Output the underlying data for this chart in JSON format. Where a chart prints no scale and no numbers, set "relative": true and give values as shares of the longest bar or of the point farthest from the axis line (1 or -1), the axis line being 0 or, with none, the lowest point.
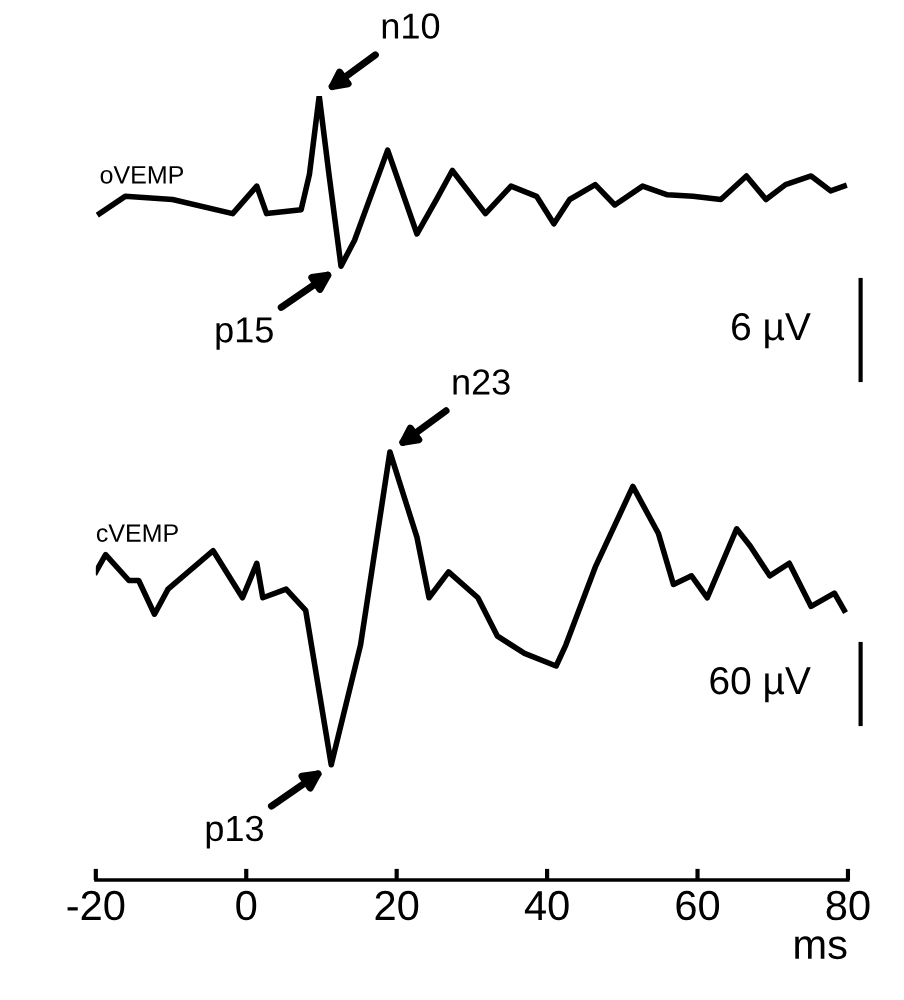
{
  "chart_data": {
    "type": "line",
    "relative": true,
    "xlim": [
      -20,
      80
    ],
    "xticks": [
      -20,
      0,
      20,
      40,
      60,
      80
    ],
    "xlabel": "ms",
    "tick_labels": "x",
    "grid": false,
    "legend": false,
    "series": [
      {
        "name": "oVEMP",
        "color": "#000000",
        "x": [
          -19.5,
          -16.1,
          -9.8,
          -1.8,
          1.4,
          2.7,
          7.3,
          8.4,
          9.7,
          11.0,
          12.6,
          14.4,
          18.8,
          22.7,
          25.3,
          27.4,
          31.8,
          35.2,
          38.6,
          40.9,
          43.0,
          46.4,
          49.0,
          52.7,
          56.0,
          59.4,
          63.1,
          66.5,
          69.1,
          71.7,
          75.1,
          77.7,
          79.5
        ],
        "values": [
          0.85,
          0.872,
          0.868,
          0.85,
          0.885,
          0.85,
          0.855,
          0.9,
          1.0,
          0.9,
          0.783,
          0.816,
          0.931,
          0.824,
          0.868,
          0.905,
          0.85,
          0.885,
          0.872,
          0.837,
          0.868,
          0.887,
          0.861,
          0.885,
          0.874,
          0.872,
          0.868,
          0.898,
          0.868,
          0.887,
          0.898,
          0.879,
          0.885
        ]
      },
      {
        "name": "cVEMP",
        "color": "#000000",
        "x": [
          -20,
          -18.7,
          -15.6,
          -14.3,
          -12.2,
          -10.4,
          -4.4,
          -0.5,
          1.4,
          2.2,
          5.3,
          7.9,
          11.3,
          15.2,
          19.1,
          22.7,
          24.3,
          26.9,
          30.8,
          33.4,
          37.0,
          41.2,
          42.5,
          46.4,
          51.4,
          54.8,
          56.8,
          59.2,
          61.3,
          65.2,
          67.0,
          69.6,
          72.2,
          75.1,
          78.2,
          79.5
        ],
        "values": [
          0.393,
          0.415,
          0.382,
          0.382,
          0.339,
          0.371,
          0.42,
          0.36,
          0.404,
          0.36,
          0.371,
          0.344,
          0.147,
          0.3,
          0.546,
          0.437,
          0.36,
          0.393,
          0.36,
          0.311,
          0.289,
          0.273,
          0.3,
          0.399,
          0.502,
          0.442,
          0.377,
          0.388,
          0.36,
          0.448,
          0.426,
          0.388,
          0.404,
          0.349,
          0.366,
          0.344
        ]
      }
    ],
    "annotations": [
      {
        "text": "n10",
        "x": 9.7,
        "y": 1.0
      },
      {
        "text": "p15",
        "x": 12.6,
        "y": 0.783
      },
      {
        "text": "n23",
        "x": 19.1,
        "y": 0.546
      },
      {
        "text": "p13",
        "x": 11.3,
        "y": 0.147
      },
      "6 µV",
      "60 µV"
    ]
  }
}
